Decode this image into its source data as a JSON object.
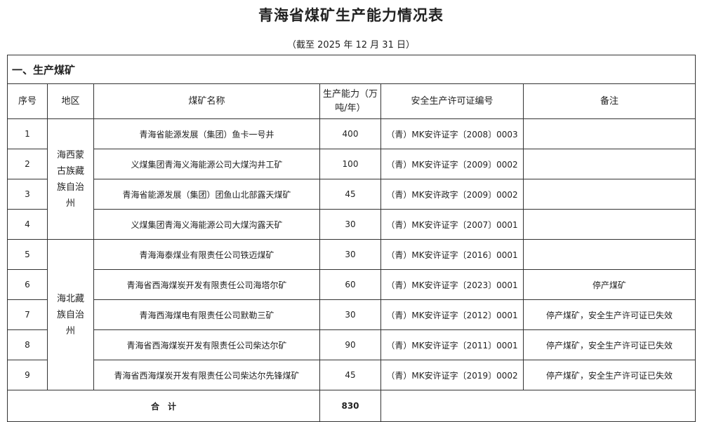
{
  "title": "青海省煤矿生产能力情况表",
  "subtitle": "（截至 2025 年 12 月 31 日）",
  "section": "一、生产煤矿",
  "headers": {
    "no": "序号",
    "region": "地区",
    "name": "煤矿名称",
    "capacity": "生产能力（万吨/年）",
    "license": "安全生产许可证编号",
    "remark": "备注"
  },
  "regions": [
    "海西蒙古族藏族自治州",
    "海北藏族自治州"
  ],
  "rows": [
    {
      "no": "1",
      "name": "青海省能源发展（集团）鱼卡一号井",
      "capacity": "400",
      "license": "（青）MK安许证字〔2008〕0003",
      "remark": ""
    },
    {
      "no": "2",
      "name": "义煤集团青海义海能源公司大煤沟井工矿",
      "capacity": "100",
      "license": "（青）MK安许证字〔2009〕0002",
      "remark": ""
    },
    {
      "no": "3",
      "name": "青海省能源发展（集团）团鱼山北部露天煤矿",
      "capacity": "45",
      "license": "（青）MK安许政字〔2009〕0002",
      "remark": ""
    },
    {
      "no": "4",
      "name": "义煤集团青海义海能源公司大煤沟露天矿",
      "capacity": "30",
      "license": "（青）MK安许证字〔2007〕0001",
      "remark": ""
    },
    {
      "no": "5",
      "name": "青海海泰煤业有限责任公司铁迈煤矿",
      "capacity": "30",
      "license": "（青）MK安许证字〔2016〕0001",
      "remark": ""
    },
    {
      "no": "6",
      "name": "青海省西海煤炭开发有限责任公司海塔尔矿",
      "capacity": "60",
      "license": "（青）MK安许证字〔2023〕0001",
      "remark": "停产煤矿"
    },
    {
      "no": "7",
      "name": "青海西海煤电有限责任公司默勒三矿",
      "capacity": "30",
      "license": "（青）MK安许证字〔2012〕0001",
      "remark": "停产煤矿，安全生产许可证已失效"
    },
    {
      "no": "8",
      "name": "青海省西海煤炭开发有限责任公司柴达尔矿",
      "capacity": "90",
      "license": "（青）MK安许证字〔2011〕0001",
      "remark": "停产煤矿，安全生产许可证已失效"
    },
    {
      "no": "9",
      "name": "青海省西海煤炭开发有限责任公司柴达尔先锋煤矿",
      "capacity": "45",
      "license": "（青）MK安许证字〔2019〕0002",
      "remark": "停产煤矿，安全生产许可证已失效"
    }
  ],
  "total": {
    "label": "合　计",
    "value": "830"
  }
}
